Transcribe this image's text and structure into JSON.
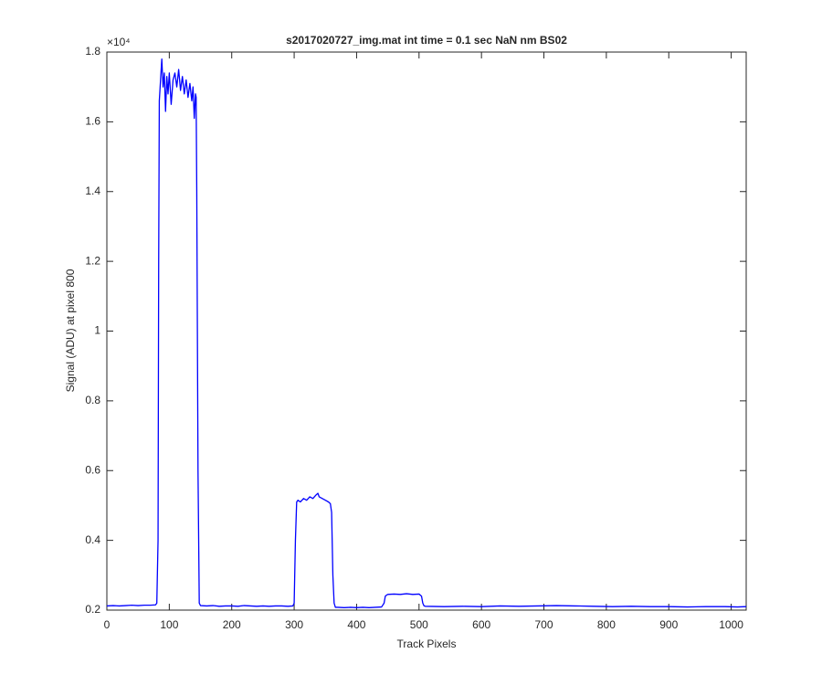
{
  "chart_data": {
    "type": "line",
    "title": "s2017020727_img.mat int time = 0.1 sec  NaN nm BS02",
    "x_label": "Track Pixels",
    "y_label": "Signal (ADU) at pixel 800",
    "y_exponent": "×10⁴",
    "xlim": [
      0,
      1024
    ],
    "ylim": [
      0.2,
      1.8
    ],
    "xticks": [
      0,
      100,
      200,
      300,
      400,
      500,
      600,
      700,
      800,
      900,
      1000
    ],
    "yticks": [
      0.2,
      0.4,
      0.6,
      0.8,
      1,
      1.2,
      1.4,
      1.6,
      1.8
    ],
    "grid": false,
    "series": [
      {
        "name": "Signal",
        "color": "#0000ff",
        "x": [
          0,
          10,
          20,
          30,
          40,
          50,
          60,
          70,
          78,
          80,
          82,
          83,
          84,
          86,
          88,
          90,
          92,
          94,
          96,
          98,
          100,
          103,
          106,
          109,
          112,
          115,
          118,
          121,
          124,
          127,
          130,
          133,
          136,
          138,
          140,
          142,
          143,
          144,
          146,
          148,
          150,
          160,
          170,
          180,
          190,
          200,
          210,
          220,
          230,
          240,
          250,
          260,
          270,
          280,
          290,
          298,
          300,
          302,
          304,
          306,
          310,
          315,
          320,
          325,
          330,
          335,
          338,
          340,
          345,
          350,
          355,
          358,
          360,
          362,
          364,
          366,
          370,
          380,
          390,
          400,
          410,
          420,
          430,
          440,
          444,
          446,
          448,
          450,
          460,
          470,
          480,
          490,
          500,
          504,
          506,
          508,
          510,
          540,
          570,
          600,
          630,
          660,
          690,
          720,
          750,
          780,
          810,
          840,
          870,
          900,
          930,
          960,
          990,
          1010,
          1024
        ],
        "values": [
          0.212,
          0.213,
          0.212,
          0.213,
          0.214,
          0.213,
          0.214,
          0.214,
          0.215,
          0.22,
          0.4,
          1.2,
          1.66,
          1.72,
          1.78,
          1.7,
          1.74,
          1.63,
          1.73,
          1.68,
          1.74,
          1.65,
          1.72,
          1.74,
          1.7,
          1.75,
          1.69,
          1.73,
          1.68,
          1.72,
          1.67,
          1.71,
          1.66,
          1.7,
          1.61,
          1.68,
          1.67,
          1.4,
          0.6,
          0.22,
          0.213,
          0.212,
          0.213,
          0.211,
          0.212,
          0.212,
          0.211,
          0.213,
          0.212,
          0.211,
          0.212,
          0.211,
          0.212,
          0.212,
          0.211,
          0.212,
          0.22,
          0.4,
          0.51,
          0.515,
          0.51,
          0.52,
          0.515,
          0.525,
          0.52,
          0.53,
          0.535,
          0.525,
          0.52,
          0.515,
          0.51,
          0.505,
          0.48,
          0.3,
          0.22,
          0.208,
          0.208,
          0.207,
          0.208,
          0.207,
          0.208,
          0.207,
          0.208,
          0.209,
          0.22,
          0.24,
          0.243,
          0.245,
          0.246,
          0.245,
          0.247,
          0.245,
          0.246,
          0.24,
          0.22,
          0.212,
          0.211,
          0.21,
          0.211,
          0.21,
          0.212,
          0.211,
          0.212,
          0.213,
          0.212,
          0.211,
          0.21,
          0.211,
          0.21,
          0.21,
          0.209,
          0.21,
          0.21,
          0.209,
          0.21
        ]
      }
    ]
  }
}
